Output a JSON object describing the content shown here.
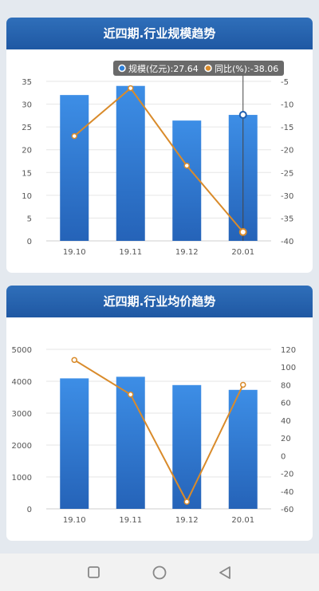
{
  "charts": [
    {
      "title": "近四期.行业规模趋势",
      "tooltip": {
        "series1_label": "规模(亿元):",
        "series1_value": "27.64",
        "series2_label": "同比(%):",
        "series2_value": "-38.06"
      }
    },
    {
      "title": "近四期.行业均价趋势"
    }
  ],
  "chart_data": [
    {
      "type": "bar",
      "title": "近四期.行业规模趋势",
      "categories": [
        "19.10",
        "19.11",
        "19.12",
        "20.01"
      ],
      "y_left": {
        "min": 0,
        "max": 35,
        "ticks": [
          0,
          5,
          10,
          15,
          20,
          25,
          30,
          35
        ]
      },
      "y_right": {
        "min": -40,
        "max": -5,
        "ticks": [
          -5,
          -10,
          -15,
          -20,
          -25,
          -30,
          -35,
          -40
        ]
      },
      "series": [
        {
          "name": "规模(亿元)",
          "type": "bar",
          "axis": "left",
          "values": [
            32,
            34,
            26.4,
            27.64
          ]
        },
        {
          "name": "同比(%)",
          "type": "line",
          "axis": "right",
          "values": [
            -17,
            -6.5,
            -23.5,
            -38.06
          ]
        }
      ],
      "highlight_index": 3,
      "grid": true,
      "colors": {
        "bar_top": "#3d8ee6",
        "bar_bottom": "#2563b8",
        "line": "#d98b2b"
      }
    },
    {
      "type": "bar",
      "title": "近四期.行业均价趋势",
      "categories": [
        "19.10",
        "19.11",
        "19.12",
        "20.01"
      ],
      "y_left": {
        "min": 0,
        "max": 5000,
        "ticks": [
          0,
          1000,
          2000,
          3000,
          4000,
          5000
        ]
      },
      "y_right": {
        "min": -60,
        "max": 120,
        "ticks": [
          -60,
          -40,
          -20,
          0,
          20,
          40,
          60,
          80,
          100,
          120
        ]
      },
      "series": [
        {
          "name": "均价",
          "type": "bar",
          "axis": "left",
          "values": [
            4090,
            4140,
            3880,
            3730
          ]
        },
        {
          "name": "同比(%)",
          "type": "line",
          "axis": "right",
          "values": [
            108,
            69,
            -52,
            80
          ]
        }
      ],
      "grid": true,
      "colors": {
        "bar_top": "#3d8ee6",
        "bar_bottom": "#2563b8",
        "line": "#d98b2b"
      }
    }
  ],
  "nav": {
    "buttons": [
      "recent-apps",
      "home",
      "back"
    ]
  }
}
